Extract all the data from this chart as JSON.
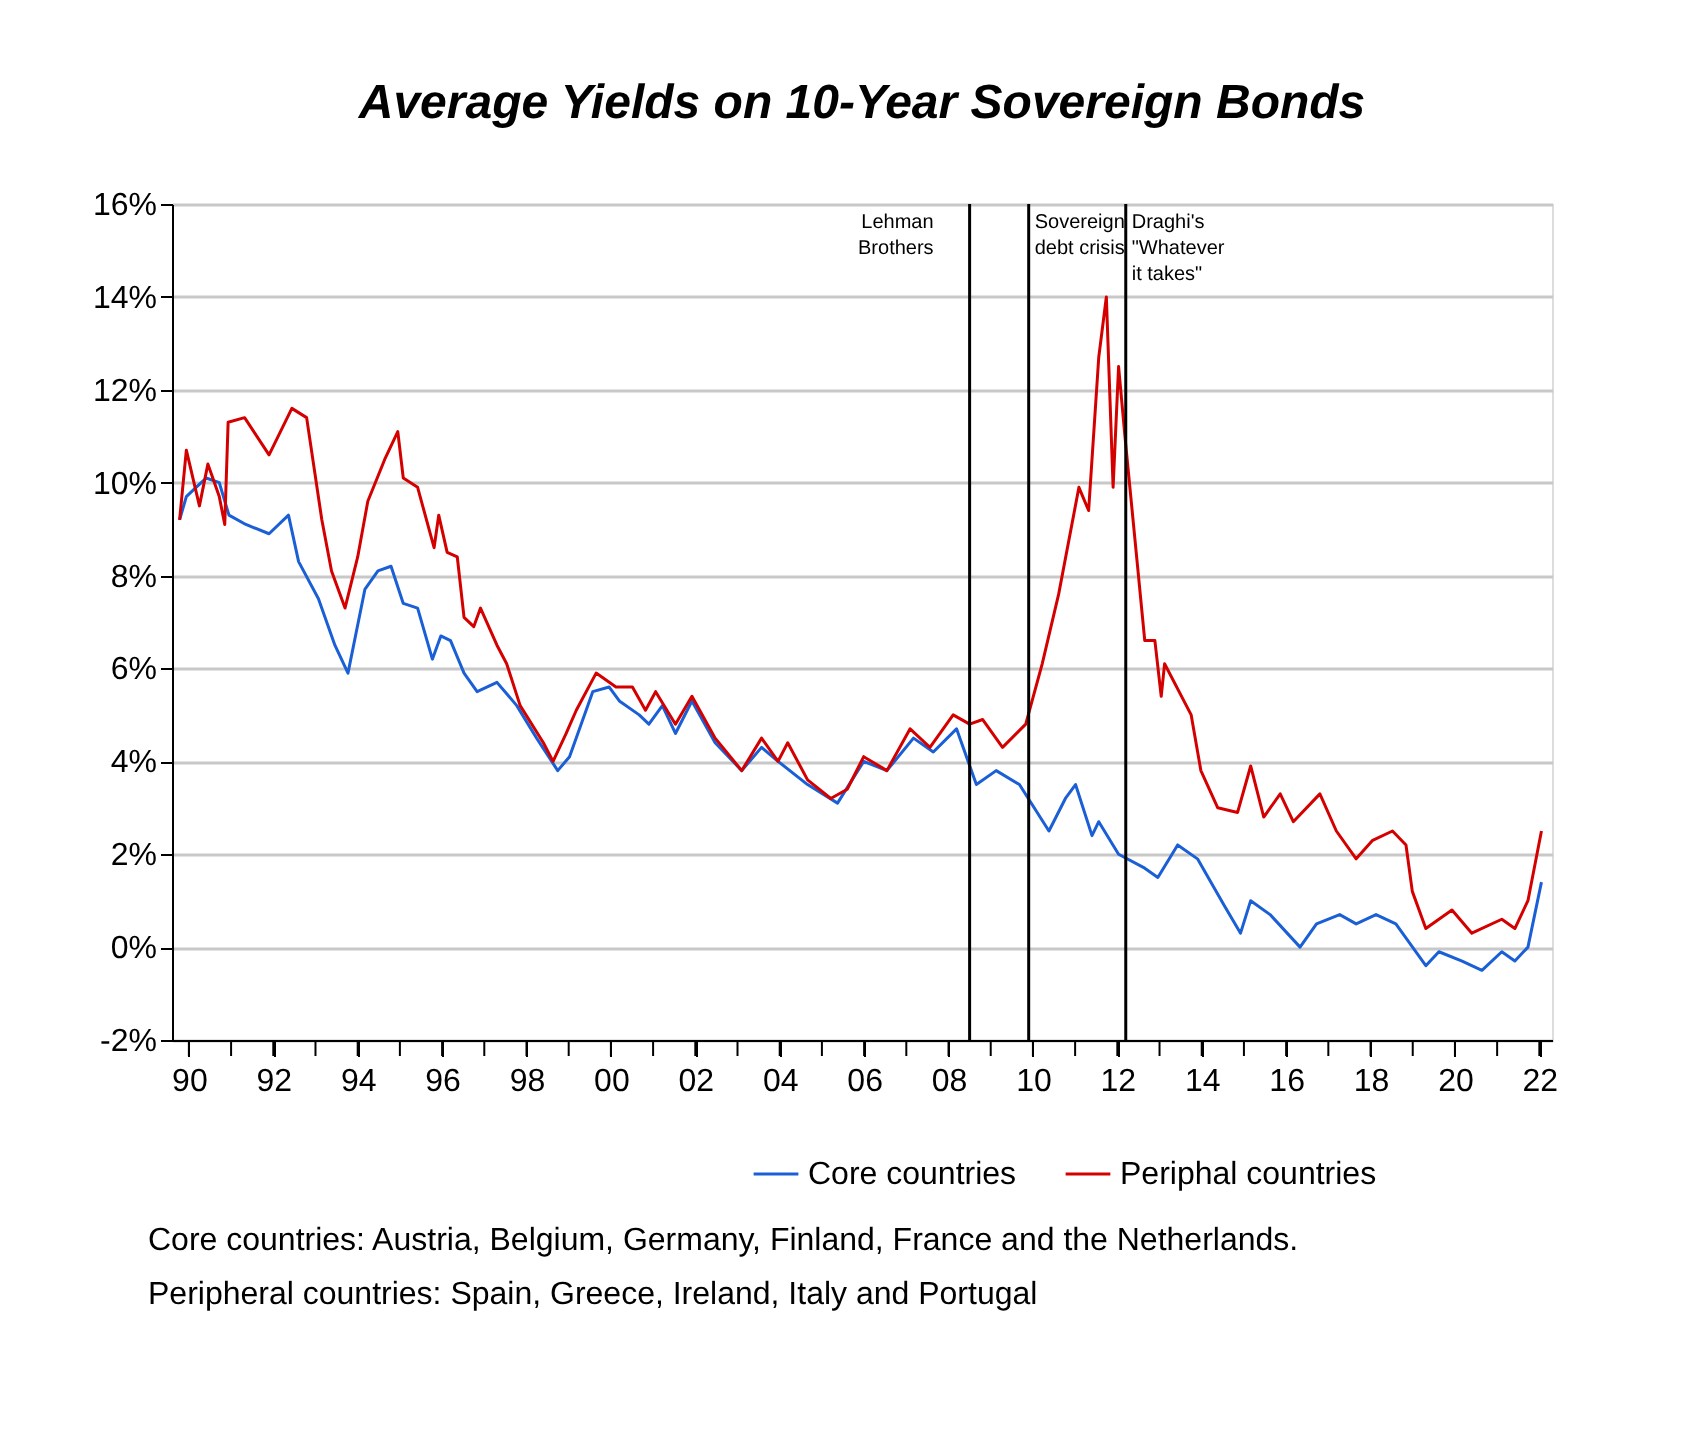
{
  "chart_data": {
    "type": "line",
    "title": "Average Yields on 10-Year Sovereign Bonds",
    "xlim": [
      1989.6,
      2022.3
    ],
    "xticks": [
      {
        "value": 1990,
        "label": "90"
      },
      {
        "value": 1991,
        "label": null
      },
      {
        "value": 1992,
        "label": "92"
      },
      {
        "value": 1993,
        "label": null
      },
      {
        "value": 1994,
        "label": "94"
      },
      {
        "value": 1995,
        "label": null
      },
      {
        "value": 1996,
        "label": "96"
      },
      {
        "value": 1997,
        "label": null
      },
      {
        "value": 1998,
        "label": "98"
      },
      {
        "value": 1999,
        "label": null
      },
      {
        "value": 2000,
        "label": "00"
      },
      {
        "value": 2001,
        "label": null
      },
      {
        "value": 2002,
        "label": "02"
      },
      {
        "value": 2003,
        "label": null
      },
      {
        "value": 2004,
        "label": "04"
      },
      {
        "value": 2005,
        "label": null
      },
      {
        "value": 2006,
        "label": "06"
      },
      {
        "value": 2007,
        "label": null
      },
      {
        "value": 2008,
        "label": "08"
      },
      {
        "value": 2009,
        "label": null
      },
      {
        "value": 2010,
        "label": "10"
      },
      {
        "value": 2011,
        "label": null
      },
      {
        "value": 2012,
        "label": "12"
      },
      {
        "value": 2013,
        "label": null
      },
      {
        "value": 2014,
        "label": "14"
      },
      {
        "value": 2015,
        "label": null
      },
      {
        "value": 2016,
        "label": "16"
      },
      {
        "value": 2017,
        "label": null
      },
      {
        "value": 2018,
        "label": "18"
      },
      {
        "value": 2019,
        "label": null
      },
      {
        "value": 2020,
        "label": "20"
      },
      {
        "value": 2021,
        "label": null
      },
      {
        "value": 2022,
        "label": "22"
      }
    ],
    "ylim": [
      -2,
      16
    ],
    "yticks": [
      {
        "value": -2,
        "label": "-2%"
      },
      {
        "value": 0,
        "label": "0%"
      },
      {
        "value": 2,
        "label": "2%"
      },
      {
        "value": 4,
        "label": "4%"
      },
      {
        "value": 6,
        "label": "6%"
      },
      {
        "value": 8,
        "label": "8%"
      },
      {
        "value": 10,
        "label": "10%"
      },
      {
        "value": 12,
        "label": "12%"
      },
      {
        "value": 14,
        "label": "14%"
      },
      {
        "value": 16,
        "label": "16%"
      }
    ],
    "grid": "y",
    "legend": "bottom",
    "line_style": "solid",
    "series": [
      {
        "name": "Core countries",
        "color": "#1a5fd6",
        "x": [
          1989.78,
          1989.94,
          1990.17,
          1990.41,
          1990.72,
          1990.95,
          1991.35,
          1991.9,
          1992.36,
          1992.6,
          1993.07,
          1993.46,
          1993.77,
          1994.17,
          1994.48,
          1994.79,
          1995.08,
          1995.42,
          1995.77,
          1995.97,
          1996.2,
          1996.52,
          1996.83,
          1997.3,
          1997.77,
          1998.24,
          1998.74,
          1999.02,
          1999.57,
          1999.96,
          2000.2,
          2000.67,
          2000.9,
          2001.22,
          2001.53,
          2001.92,
          2002.47,
          2003.1,
          2003.57,
          2003.96,
          2004.66,
          2005.37,
          2005.99,
          2006.54,
          2007.17,
          2007.64,
          2008.19,
          2008.66,
          2009.13,
          2009.68,
          2010.38,
          2010.77,
          2011.01,
          2011.4,
          2011.56,
          2012.03,
          2012.65,
          2012.96,
          2013.43,
          2013.9,
          2014.53,
          2014.92,
          2015.16,
          2015.62,
          2016.33,
          2016.72,
          2017.27,
          2017.66,
          2018.13,
          2018.6,
          2019.31,
          2019.62,
          2020.17,
          2020.64,
          2021.11,
          2021.42,
          2021.73,
          2022.05
        ],
        "values": [
          9.2,
          9.7,
          9.9,
          10.1,
          10.0,
          9.3,
          9.1,
          8.9,
          9.3,
          8.3,
          7.5,
          6.5,
          5.9,
          7.7,
          8.1,
          8.2,
          7.4,
          7.3,
          6.2,
          6.7,
          6.6,
          5.9,
          5.5,
          5.7,
          5.2,
          4.5,
          3.8,
          4.1,
          5.5,
          5.6,
          5.3,
          5.0,
          4.8,
          5.2,
          4.6,
          5.3,
          4.4,
          3.8,
          4.3,
          4.0,
          3.5,
          3.1,
          4.0,
          3.8,
          4.5,
          4.2,
          4.7,
          3.5,
          3.8,
          3.5,
          2.5,
          3.2,
          3.5,
          2.4,
          2.7,
          2.0,
          1.7,
          1.5,
          2.2,
          1.9,
          0.9,
          0.3,
          1.0,
          0.7,
          0.0,
          0.5,
          0.7,
          0.5,
          0.7,
          0.5,
          -0.4,
          -0.1,
          -0.3,
          -0.5,
          -0.1,
          -0.3,
          0.0,
          1.4
        ]
      },
      {
        "name": "Periphal countries",
        "color": "#d40000",
        "x": [
          1989.78,
          1989.94,
          1990.25,
          1990.45,
          1990.72,
          1990.85,
          1990.93,
          1991.32,
          1991.9,
          1992.44,
          1992.79,
          1993.15,
          1993.38,
          1993.7,
          1994.0,
          1994.24,
          1994.64,
          1994.95,
          1995.08,
          1995.42,
          1995.81,
          1995.92,
          1996.12,
          1996.36,
          1996.52,
          1996.75,
          1996.91,
          1997.3,
          1997.53,
          1997.85,
          1998.4,
          1998.63,
          1998.94,
          1999.18,
          1999.65,
          2000.12,
          2000.51,
          2000.82,
          2001.06,
          2001.53,
          2001.92,
          2002.47,
          2003.1,
          2003.57,
          2003.96,
          2004.19,
          2004.66,
          2005.21,
          2005.6,
          2005.99,
          2006.54,
          2007.09,
          2007.56,
          2008.11,
          2008.5,
          2008.81,
          2009.28,
          2009.83,
          2010.22,
          2010.61,
          2011.09,
          2011.32,
          2011.56,
          2011.74,
          2011.9,
          2012.03,
          2012.18,
          2012.49,
          2012.65,
          2012.89,
          2013.04,
          2013.12,
          2013.75,
          2013.98,
          2014.38,
          2014.85,
          2015.16,
          2015.47,
          2015.86,
          2016.17,
          2016.8,
          2017.19,
          2017.66,
          2018.05,
          2018.52,
          2018.84,
          2018.99,
          2019.31,
          2019.93,
          2020.4,
          2021.11,
          2021.42,
          2021.73,
          2022.05
        ],
        "values": [
          9.2,
          10.7,
          9.5,
          10.4,
          9.7,
          9.1,
          11.3,
          11.4,
          10.6,
          11.6,
          11.4,
          9.2,
          8.1,
          7.3,
          8.4,
          9.6,
          10.5,
          11.1,
          10.1,
          9.9,
          8.6,
          9.3,
          8.5,
          8.4,
          7.1,
          6.9,
          7.3,
          6.5,
          6.1,
          5.2,
          4.4,
          4.0,
          4.6,
          5.1,
          5.9,
          5.6,
          5.6,
          5.1,
          5.5,
          4.8,
          5.4,
          4.5,
          3.8,
          4.5,
          4.0,
          4.4,
          3.6,
          3.2,
          3.4,
          4.1,
          3.8,
          4.7,
          4.3,
          5.0,
          4.8,
          4.9,
          4.3,
          4.8,
          6.1,
          7.6,
          9.9,
          9.4,
          12.7,
          14.0,
          9.9,
          12.5,
          11.0,
          8.1,
          6.6,
          6.6,
          5.4,
          6.1,
          5.0,
          3.8,
          3.0,
          2.9,
          3.9,
          2.8,
          3.3,
          2.7,
          3.3,
          2.5,
          1.9,
          2.3,
          2.5,
          2.2,
          1.2,
          0.4,
          0.8,
          0.3,
          0.6,
          0.4,
          1.0,
          2.5
        ]
      }
    ],
    "ref_lines": [
      {
        "axis": "x",
        "value": 2008.5,
        "label": "Lehman\nBrothers",
        "color": "#000000"
      },
      {
        "axis": "x",
        "value": 2009.9,
        "label": "Sovereign\ndebt crisis",
        "color": "#000000"
      },
      {
        "axis": "x",
        "value": 2012.2,
        "label": "Draghi's\n\"Whatever\n it takes\"",
        "color": "#000000"
      }
    ],
    "annotations": [
      "Core countries: Austria, Belgium, Germany, Finland, France and the Netherlands.",
      "Peripheral countries: Spain, Greece, Ireland, Italy and Portugal"
    ]
  }
}
